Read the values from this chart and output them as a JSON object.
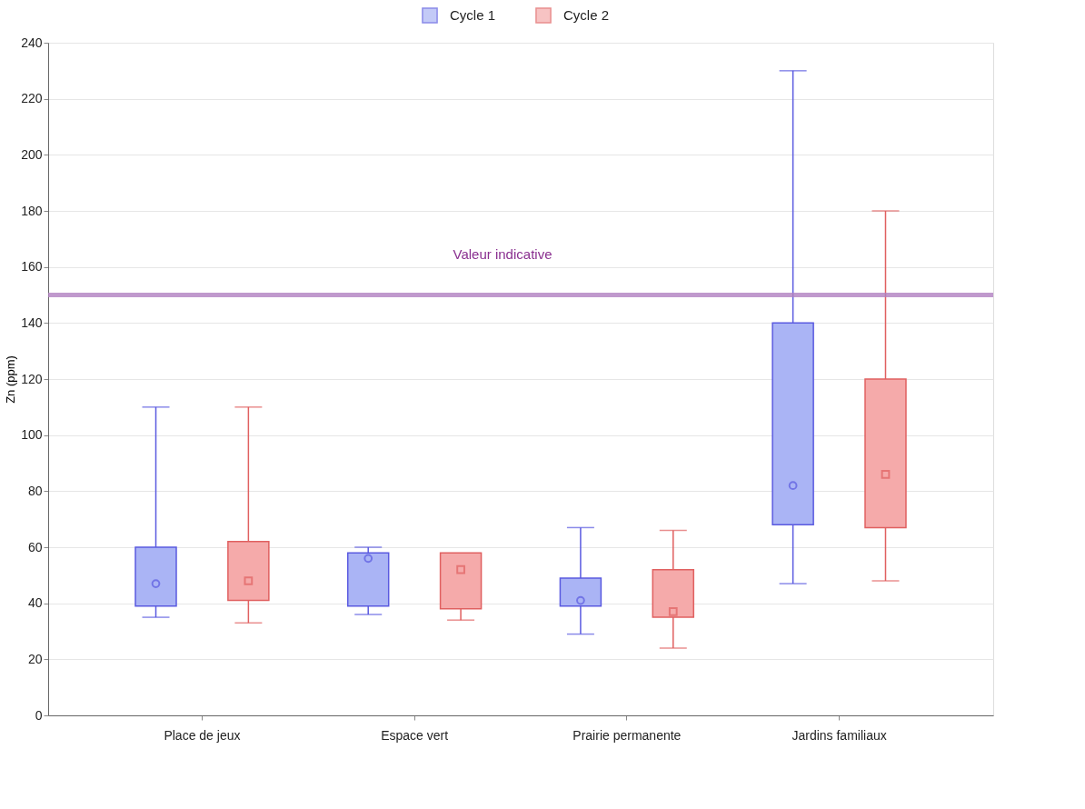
{
  "chart_data": {
    "type": "box",
    "ylabel": "Zn (ppm)",
    "categories": [
      "Place de jeux",
      "Espace vert",
      "Prairie permanente",
      "Jardins familiaux"
    ],
    "series": [
      {
        "name": "Cycle 1",
        "color": "#aab4f5",
        "marker": "circle",
        "boxes": [
          {
            "low": 35,
            "q1": 39,
            "median": 47,
            "q3": 60,
            "high": 110
          },
          {
            "low": 36,
            "q1": 39,
            "median": 56,
            "q3": 58,
            "high": 60
          },
          {
            "low": 29,
            "q1": 39,
            "median": 41,
            "q3": 49,
            "high": 67
          },
          {
            "low": 47,
            "q1": 68,
            "median": 82,
            "q3": 140,
            "high": 230
          }
        ]
      },
      {
        "name": "Cycle 2",
        "color": "#f5aaaa",
        "marker": "square",
        "boxes": [
          {
            "low": 33,
            "q1": 41,
            "median": 48,
            "q3": 62,
            "high": 110
          },
          {
            "low": 34,
            "q1": 38,
            "median": 52,
            "q3": 58,
            "high": 58
          },
          {
            "low": 24,
            "q1": 35,
            "median": 37,
            "q3": 52,
            "high": 66
          },
          {
            "low": 48,
            "q1": 67,
            "median": 86,
            "q3": 120,
            "high": 180
          }
        ]
      }
    ],
    "ylim": [
      0,
      240
    ],
    "yticks": [
      0,
      20,
      40,
      60,
      80,
      100,
      120,
      140,
      160,
      180,
      200,
      220,
      240
    ],
    "ref_lines": [
      {
        "axis": "y",
        "value": 150,
        "label": "Valeur indicative",
        "color": "#b080c0"
      }
    ],
    "grid": "y",
    "legend": "top"
  }
}
